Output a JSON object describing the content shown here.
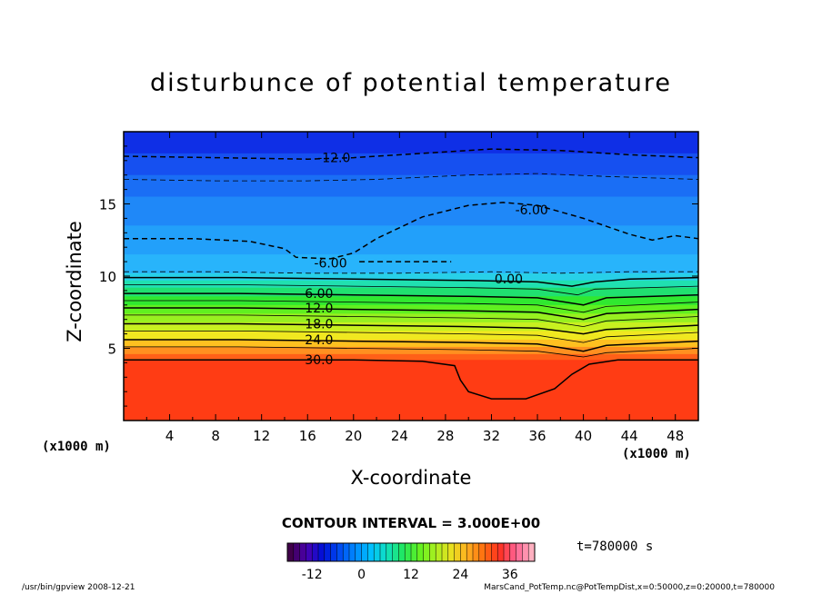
{
  "chart_data": {
    "type": "heatmap",
    "title": "disturbunce of potential temperature",
    "xlabel": "X-coordinate",
    "ylabel": "Z-coordinate",
    "x_unit_left": "(x1000 m)",
    "x_unit_right": "(x1000 m)",
    "xlim": [
      0,
      50
    ],
    "ylim": [
      0,
      20
    ],
    "x_ticks": [
      4,
      8,
      12,
      16,
      20,
      24,
      28,
      32,
      36,
      40,
      44,
      48
    ],
    "y_ticks": [
      5,
      10,
      15
    ],
    "contour_interval_text": "CONTOUR INTERVAL = 3.000E+00",
    "time_text": "t=780000 s",
    "colorbar": {
      "range": [
        -18,
        42
      ],
      "ticks": [
        -12,
        0,
        12,
        24,
        36
      ],
      "colors": [
        "#40004a",
        "#4a00b0",
        "#0010d8",
        "#0048f0",
        "#0088ff",
        "#00c0ff",
        "#10e0c0",
        "#20e860",
        "#60f020",
        "#a8f020",
        "#e8e020",
        "#ffb020",
        "#ff7010",
        "#ff3020",
        "#ff6090",
        "#ffb0c0"
      ]
    },
    "bands": [
      {
        "z0": 18.5,
        "z1": 20,
        "color": "#0f2fe6"
      },
      {
        "z0": 17.0,
        "z1": 18.5,
        "color": "#1650f0"
      },
      {
        "z0": 15.5,
        "z1": 17.0,
        "color": "#1a6ef5"
      },
      {
        "z0": 13.5,
        "z1": 15.5,
        "color": "#1f88f8"
      },
      {
        "z0": 11.5,
        "z1": 13.5,
        "color": "#22a0fa"
      },
      {
        "z0": 10.2,
        "z1": 11.5,
        "color": "#28b4fb"
      },
      {
        "z0": 9.7,
        "z1": 10.2,
        "color": "#28d0e8"
      },
      {
        "z0": 9.2,
        "z1": 9.7,
        "color": "#20e0b0"
      },
      {
        "z0": 8.6,
        "z1": 9.2,
        "color": "#20e070"
      },
      {
        "z0": 8.0,
        "z1": 8.6,
        "color": "#30e830"
      },
      {
        "z0": 7.4,
        "z1": 8.0,
        "color": "#60f020"
      },
      {
        "z0": 6.8,
        "z1": 7.4,
        "color": "#98f020"
      },
      {
        "z0": 6.2,
        "z1": 6.8,
        "color": "#c8f020"
      },
      {
        "z0": 5.6,
        "z1": 6.2,
        "color": "#f0e820"
      },
      {
        "z0": 5.1,
        "z1": 5.6,
        "color": "#ffc020"
      },
      {
        "z0": 4.6,
        "z1": 5.1,
        "color": "#ff9020"
      },
      {
        "z0": 4.2,
        "z1": 4.6,
        "color": "#ff6018"
      },
      {
        "z0": 0,
        "z1": 4.2,
        "color": "#ff3c14"
      }
    ],
    "contours": [
      {
        "label": "-12.0",
        "dashed": true,
        "width": 1.5,
        "points": [
          [
            0,
            18.3
          ],
          [
            8,
            18.2
          ],
          [
            16,
            18.1
          ],
          [
            20,
            18.2
          ],
          [
            26,
            18.5
          ],
          [
            32,
            18.8
          ],
          [
            38,
            18.7
          ],
          [
            44,
            18.4
          ],
          [
            50,
            18.2
          ]
        ]
      },
      {
        "label": "",
        "dashed": true,
        "width": 0.8,
        "points": [
          [
            0,
            16.7
          ],
          [
            8,
            16.6
          ],
          [
            16,
            16.6
          ],
          [
            22,
            16.7
          ],
          [
            30,
            17.0
          ],
          [
            36,
            17.1
          ],
          [
            42,
            16.9
          ],
          [
            50,
            16.7
          ]
        ]
      },
      {
        "label": "-6.00",
        "dashed": true,
        "width": 1.5,
        "points": [
          [
            0,
            12.6
          ],
          [
            6,
            12.6
          ],
          [
            11,
            12.4
          ],
          [
            14,
            11.9
          ],
          [
            15,
            11.3
          ],
          [
            18,
            11.2
          ],
          [
            20,
            11.6
          ],
          [
            22,
            12.6
          ],
          [
            26,
            14.1
          ],
          [
            30,
            14.9
          ],
          [
            33,
            15.1
          ],
          [
            36,
            14.9
          ],
          [
            40,
            14.0
          ],
          [
            44,
            12.9
          ],
          [
            46,
            12.5
          ],
          [
            48,
            12.8
          ],
          [
            50,
            12.6
          ]
        ]
      },
      {
        "label": "-6.00",
        "dashed": true,
        "width": 1.5,
        "points": [
          [
            20.5,
            11.0
          ],
          [
            24,
            11.0
          ],
          [
            28.5,
            11.0
          ]
        ]
      },
      {
        "label": "",
        "dashed": true,
        "width": 0.8,
        "points": [
          [
            0,
            10.3
          ],
          [
            8,
            10.3
          ],
          [
            16,
            10.2
          ],
          [
            24,
            10.2
          ],
          [
            32,
            10.3
          ],
          [
            38,
            10.2
          ],
          [
            44,
            10.3
          ],
          [
            50,
            10.3
          ]
        ]
      },
      {
        "label": "0.00",
        "dashed": false,
        "width": 1.5,
        "points": [
          [
            0,
            9.9
          ],
          [
            10,
            9.9
          ],
          [
            20,
            9.8
          ],
          [
            30,
            9.7
          ],
          [
            36,
            9.6
          ],
          [
            39,
            9.3
          ],
          [
            41,
            9.6
          ],
          [
            44,
            9.8
          ],
          [
            50,
            9.9
          ]
        ]
      },
      {
        "label": "",
        "dashed": false,
        "width": 0.8,
        "points": [
          [
            0,
            9.4
          ],
          [
            10,
            9.4
          ],
          [
            20,
            9.3
          ],
          [
            30,
            9.2
          ],
          [
            36,
            9.1
          ],
          [
            39.5,
            8.7
          ],
          [
            41,
            9.1
          ],
          [
            50,
            9.3
          ]
        ]
      },
      {
        "label": "6.00",
        "dashed": false,
        "width": 1.5,
        "points": [
          [
            0,
            8.8
          ],
          [
            10,
            8.8
          ],
          [
            20,
            8.7
          ],
          [
            30,
            8.6
          ],
          [
            36,
            8.5
          ],
          [
            40,
            8.0
          ],
          [
            42,
            8.5
          ],
          [
            50,
            8.7
          ]
        ]
      },
      {
        "label": "",
        "dashed": false,
        "width": 0.8,
        "points": [
          [
            0,
            8.3
          ],
          [
            10,
            8.3
          ],
          [
            20,
            8.2
          ],
          [
            30,
            8.1
          ],
          [
            36,
            8.0
          ],
          [
            40,
            7.5
          ],
          [
            42,
            7.9
          ],
          [
            50,
            8.2
          ]
        ]
      },
      {
        "label": "12.0",
        "dashed": false,
        "width": 1.5,
        "points": [
          [
            0,
            7.8
          ],
          [
            10,
            7.8
          ],
          [
            20,
            7.7
          ],
          [
            30,
            7.6
          ],
          [
            36,
            7.5
          ],
          [
            40,
            7.0
          ],
          [
            42,
            7.4
          ],
          [
            50,
            7.7
          ]
        ]
      },
      {
        "label": "",
        "dashed": false,
        "width": 0.8,
        "points": [
          [
            0,
            7.3
          ],
          [
            10,
            7.3
          ],
          [
            20,
            7.2
          ],
          [
            30,
            7.1
          ],
          [
            36,
            7.0
          ],
          [
            40,
            6.5
          ],
          [
            42,
            6.9
          ],
          [
            50,
            7.2
          ]
        ]
      },
      {
        "label": "18.0",
        "dashed": false,
        "width": 1.5,
        "points": [
          [
            0,
            6.7
          ],
          [
            10,
            6.7
          ],
          [
            20,
            6.6
          ],
          [
            30,
            6.5
          ],
          [
            36,
            6.4
          ],
          [
            40,
            6.0
          ],
          [
            42,
            6.3
          ],
          [
            50,
            6.6
          ]
        ]
      },
      {
        "label": "",
        "dashed": false,
        "width": 0.8,
        "points": [
          [
            0,
            6.2
          ],
          [
            10,
            6.2
          ],
          [
            20,
            6.1
          ],
          [
            30,
            6.0
          ],
          [
            36,
            5.9
          ],
          [
            40,
            5.4
          ],
          [
            42,
            5.8
          ],
          [
            50,
            6.1
          ]
        ]
      },
      {
        "label": "24.0",
        "dashed": false,
        "width": 1.5,
        "points": [
          [
            0,
            5.6
          ],
          [
            10,
            5.6
          ],
          [
            20,
            5.5
          ],
          [
            30,
            5.4
          ],
          [
            36,
            5.3
          ],
          [
            40,
            4.8
          ],
          [
            42,
            5.2
          ],
          [
            50,
            5.5
          ]
        ]
      },
      {
        "label": "",
        "dashed": false,
        "width": 0.8,
        "points": [
          [
            0,
            5.1
          ],
          [
            10,
            5.1
          ],
          [
            20,
            5.0
          ],
          [
            30,
            4.9
          ],
          [
            36,
            4.8
          ],
          [
            40,
            4.4
          ],
          [
            42,
            4.7
          ],
          [
            50,
            5.0
          ]
        ]
      },
      {
        "label": "30.0",
        "dashed": false,
        "width": 1.5,
        "points": [
          [
            0,
            4.2
          ],
          [
            12,
            4.2
          ],
          [
            20,
            4.2
          ],
          [
            26,
            4.1
          ],
          [
            28.8,
            3.8
          ],
          [
            29.3,
            2.8
          ],
          [
            30,
            2.0
          ],
          [
            32,
            1.5
          ],
          [
            35,
            1.5
          ],
          [
            37.5,
            2.2
          ],
          [
            39,
            3.2
          ],
          [
            40.5,
            3.9
          ],
          [
            43,
            4.2
          ],
          [
            50,
            4.2
          ]
        ]
      }
    ],
    "label_positions": [
      {
        "text": "-12.0",
        "x": 18.3,
        "z": 18.2
      },
      {
        "text": "-6.00",
        "x": 35.5,
        "z": 14.6
      },
      {
        "text": "-6.00",
        "x": 18.0,
        "z": 10.9
      },
      {
        "text": "0.00",
        "x": 33.5,
        "z": 9.8
      },
      {
        "text": "6.00",
        "x": 17.0,
        "z": 8.8
      },
      {
        "text": "12.0",
        "x": 17.0,
        "z": 7.8
      },
      {
        "text": "18.0",
        "x": 17.0,
        "z": 6.7
      },
      {
        "text": "24.0",
        "x": 17.0,
        "z": 5.6
      },
      {
        "text": "30.0",
        "x": 17.0,
        "z": 4.2
      }
    ]
  },
  "footer": {
    "left": "/usr/bin/gpview   2008-12-21",
    "right": "MarsCand_PotTemp.nc@PotTempDist,x=0:50000,z=0:20000,t=780000"
  }
}
